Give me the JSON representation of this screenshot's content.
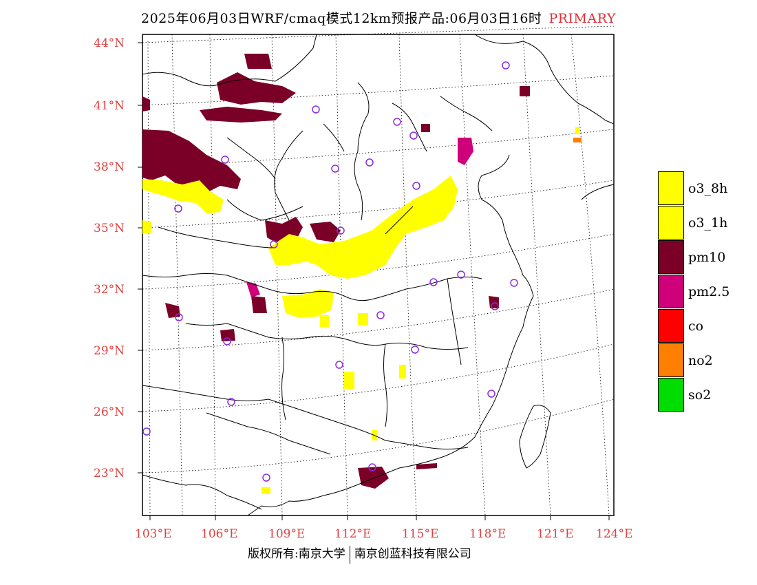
{
  "title": {
    "text": "2025年06月03日WRF/cmaq模式12km预报产品:06月03日16时",
    "tag": "PRIMARY"
  },
  "axes": {
    "lat_labels": [
      "44°N",
      "41°N",
      "38°N",
      "35°N",
      "32°N",
      "29°N",
      "26°N",
      "23°N"
    ],
    "lon_labels": [
      "103°E",
      "106°E",
      "109°E",
      "112°E",
      "115°E",
      "118°E",
      "121°E",
      "124°E"
    ]
  },
  "legend": {
    "items": [
      {
        "label": "o3_8h",
        "color": "#ffff00"
      },
      {
        "label": "o3_1h",
        "color": "#ffff00"
      },
      {
        "label": "pm10",
        "color": "#7a0028"
      },
      {
        "label": "pm2.5",
        "color": "#d0007a"
      },
      {
        "label": "co",
        "color": "#ff0000"
      },
      {
        "label": "no2",
        "color": "#ff7f00"
      },
      {
        "label": "so2",
        "color": "#00dd00"
      }
    ]
  },
  "credit": {
    "left": "版权所有:南京大学",
    "right": "南京创蓝科技有限公司"
  },
  "colors": {
    "axis_label": "#e24040",
    "pm10": "#7a0028",
    "o3": "#ffff00",
    "pm25": "#d0007a",
    "no2": "#ff7f00",
    "station": "#8a2be2"
  }
}
